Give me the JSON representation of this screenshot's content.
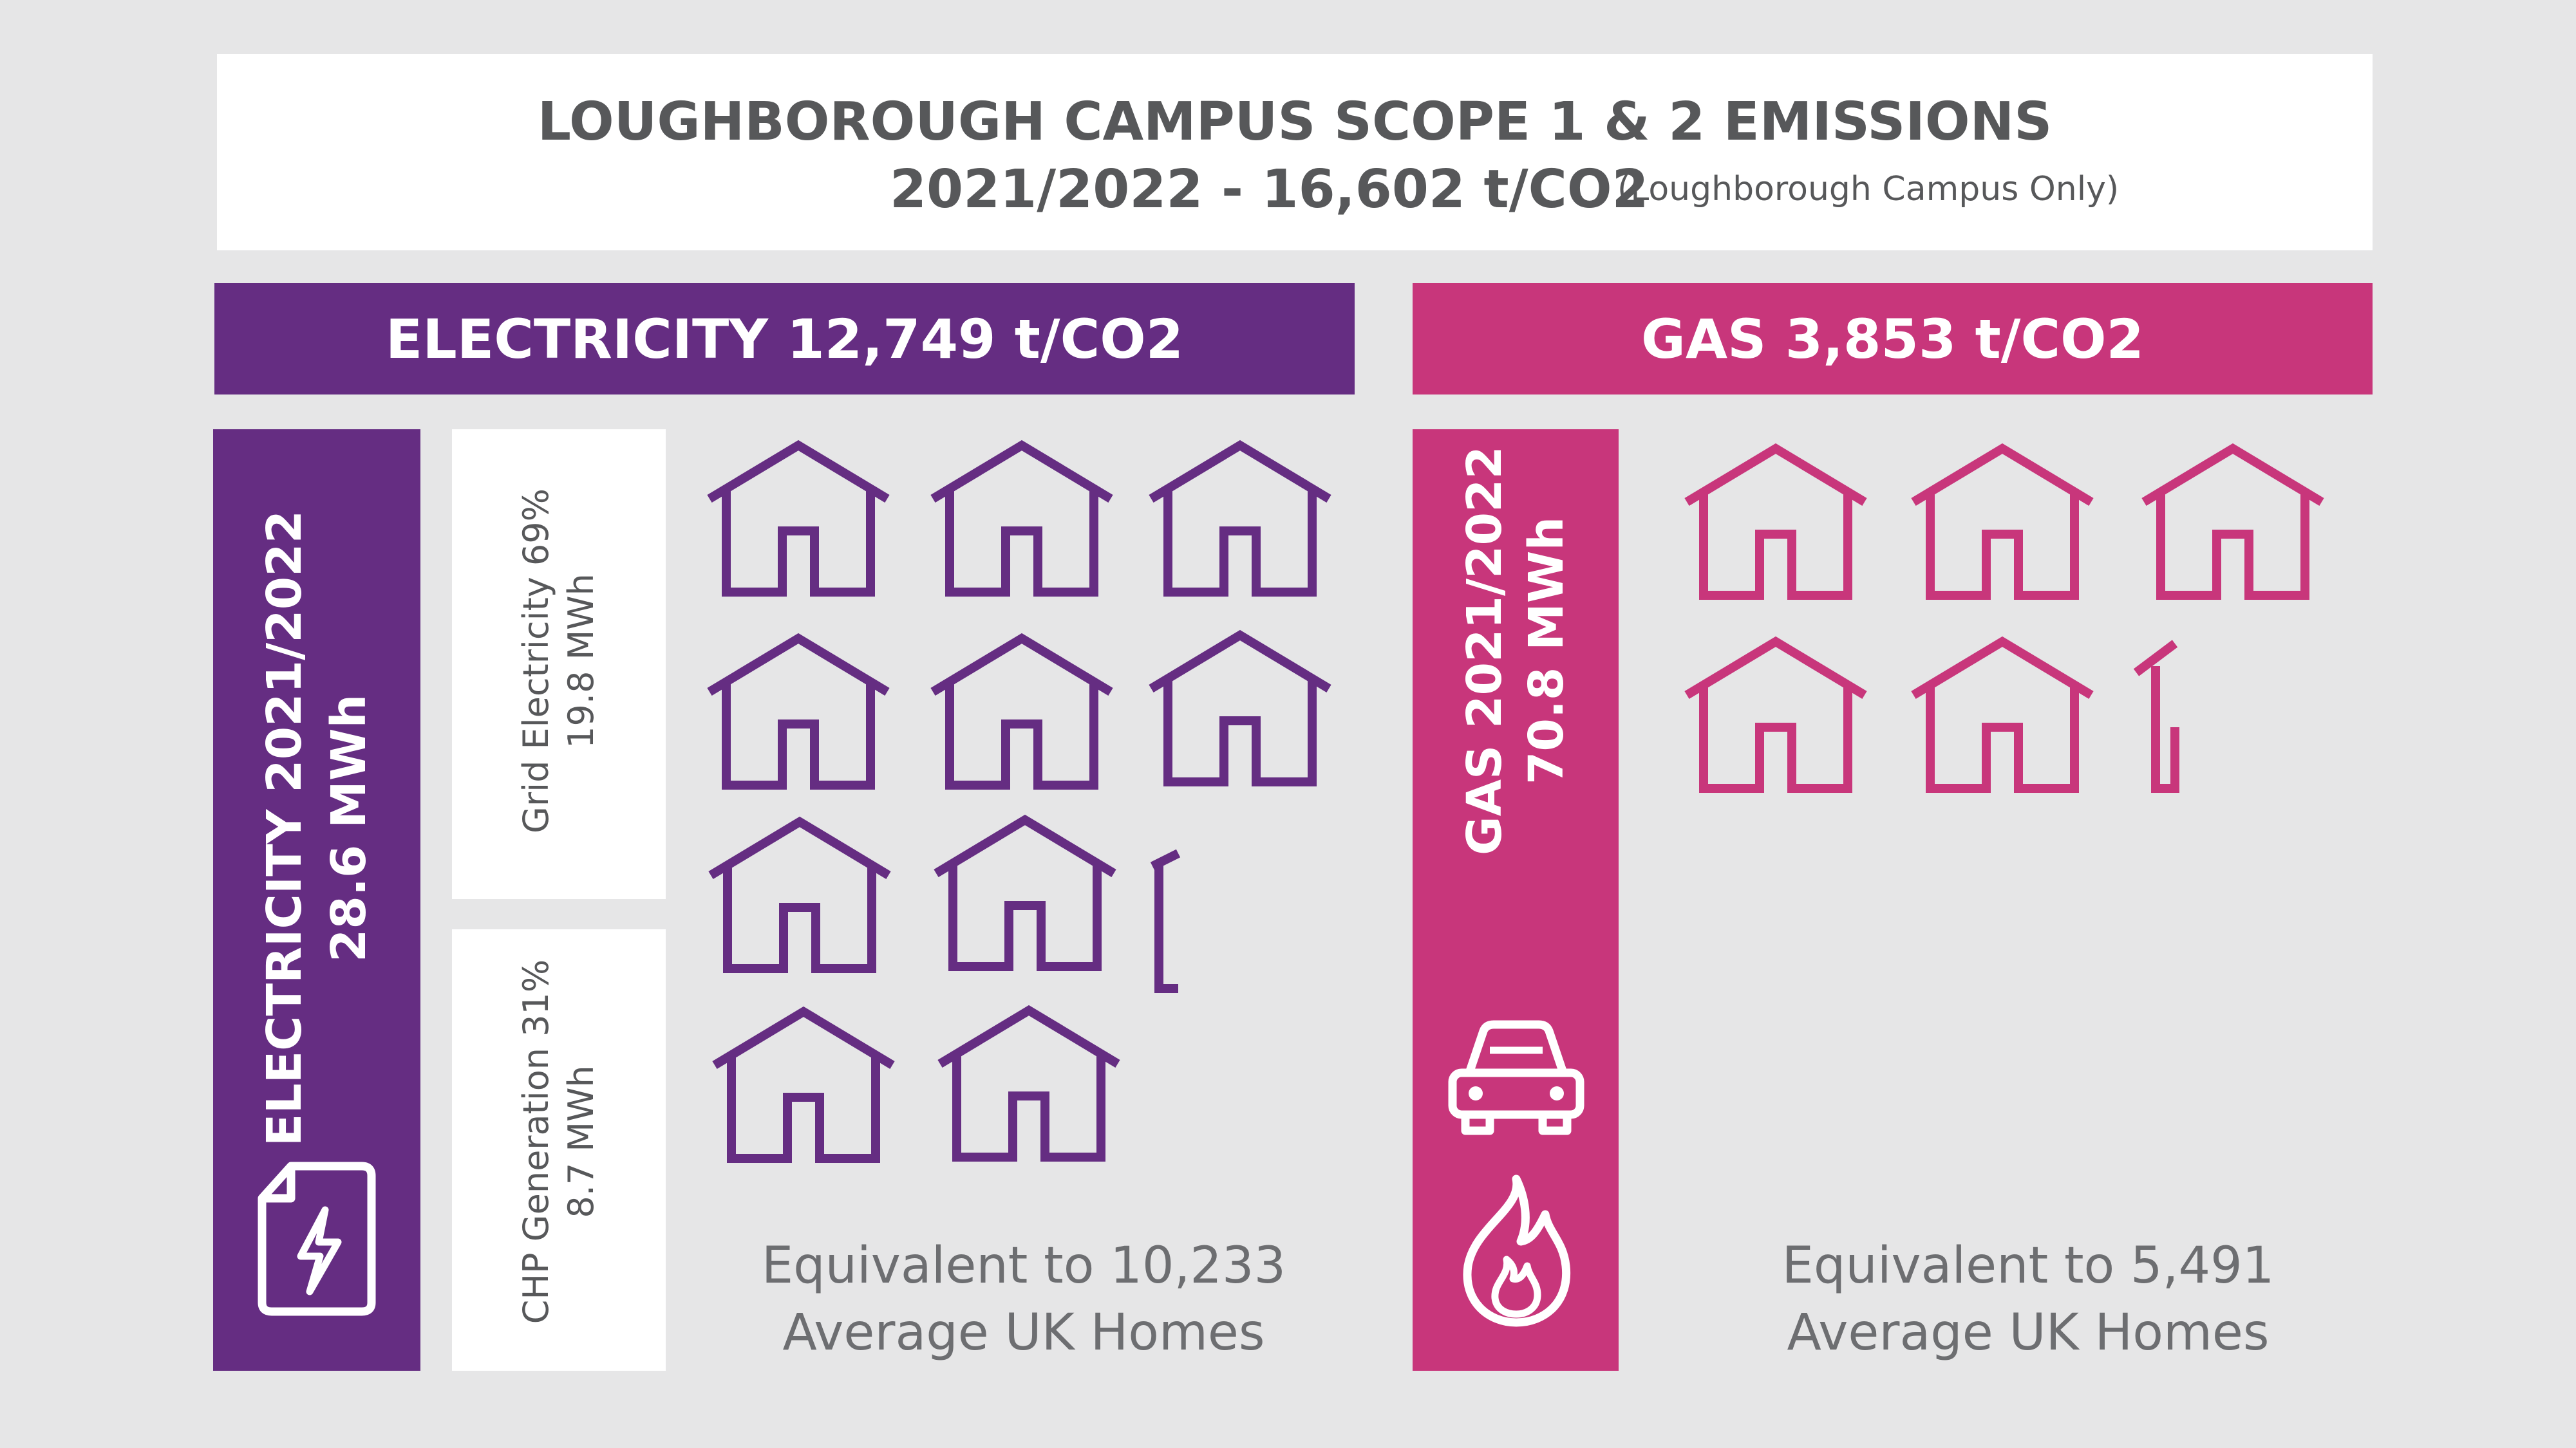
{
  "title": {
    "line1": "LOUGHBOROUGH CAMPUS SCOPE 1 & 2 EMISSIONS",
    "line2": "2021/2022 - 16,602 t/CO2",
    "note": "(Loughborough Campus Only)"
  },
  "electricity": {
    "band_label": "ELECTRICITY 12,749 t/CO2",
    "vertical_line1": "ELECTRICITY 2021/2022",
    "vertical_line2": "28.6 MWh",
    "grid_line1": "Grid Electricity 69%",
    "grid_line2": "19.8 MWh",
    "chp_line1": "CHP Generation 31%",
    "chp_line2": "8.7 MWh",
    "equiv_line1": "Equivalent to 10,233",
    "equiv_line2": "Average UK Homes",
    "icon": "electricity-bill-icon",
    "color": "#652d82"
  },
  "gas": {
    "band_label": "GAS 3,853 t/CO2",
    "vertical_line1": "GAS 2021/2022",
    "vertical_line2": "70.8 MWh",
    "equiv_line1": "Equivalent to 5,491",
    "equiv_line2": "Average UK Homes",
    "icons": [
      "car-icon",
      "flame-icon"
    ],
    "color": "#c8367b"
  }
}
